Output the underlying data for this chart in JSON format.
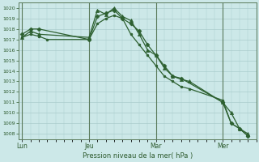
{
  "bg_color": "#cce8e8",
  "grid_color": "#aacccc",
  "line_color": "#2d6030",
  "tick_label_color": "#2d5a2d",
  "xlabel": "Pression niveau de la mer( hPa )",
  "ylim": [
    1007.5,
    1020.5
  ],
  "yticks": [
    1008,
    1009,
    1010,
    1011,
    1012,
    1013,
    1014,
    1015,
    1016,
    1017,
    1018,
    1019,
    1020
  ],
  "xtick_labels": [
    "Lun",
    "Jeu",
    "Mar",
    "Mer"
  ],
  "xtick_positions": [
    0,
    4,
    8,
    12
  ],
  "xlim": [
    -0.2,
    14.0
  ],
  "vline_positions": [
    0,
    4,
    8,
    12
  ],
  "series": [
    {
      "x": [
        0,
        0.5,
        1.0,
        4.0,
        4.5,
        5.0,
        5.5,
        6.0,
        6.5,
        7.0,
        7.5,
        8.0,
        8.5,
        9.0,
        9.5,
        12.0,
        12.5,
        13.0,
        13.5
      ],
      "y": [
        1017.5,
        1018.0,
        1018.0,
        1017.0,
        1019.2,
        1019.5,
        1019.8,
        1019.0,
        1018.5,
        1017.8,
        1016.5,
        1015.5,
        1014.5,
        1013.5,
        1013.3,
        1011.0,
        1009.0,
        1008.5,
        1007.8
      ],
      "marker": "D",
      "markersize": 2.5
    },
    {
      "x": [
        0,
        0.5,
        1.0,
        4.0,
        4.5,
        5.0,
        5.5,
        6.0,
        6.5,
        7.0,
        7.5,
        8.0,
        8.5,
        9.0,
        9.5,
        10.0,
        12.0,
        12.5,
        13.0,
        13.5
      ],
      "y": [
        1017.2,
        1017.8,
        1017.5,
        1017.2,
        1019.8,
        1019.4,
        1020.0,
        1019.2,
        1018.8,
        1017.5,
        1016.0,
        1015.5,
        1014.3,
        1013.5,
        1013.2,
        1013.0,
        1011.0,
        1010.0,
        1008.5,
        1008.0
      ],
      "marker": "^",
      "markersize": 3
    },
    {
      "x": [
        0,
        0.5,
        1.0,
        1.5,
        4.0,
        4.5,
        5.0,
        5.5,
        6.0,
        6.5,
        7.0,
        7.5,
        8.0,
        8.5,
        9.0,
        9.5,
        10.0,
        12.0,
        12.5,
        13.0,
        13.5
      ],
      "y": [
        1017.2,
        1017.5,
        1017.3,
        1017.0,
        1017.0,
        1018.5,
        1019.0,
        1019.3,
        1019.0,
        1017.5,
        1016.5,
        1015.5,
        1014.5,
        1013.5,
        1013.0,
        1012.5,
        1012.3,
        1011.2,
        1009.0,
        1008.5,
        1007.8
      ],
      "marker": "o",
      "markersize": 2.0
    }
  ]
}
